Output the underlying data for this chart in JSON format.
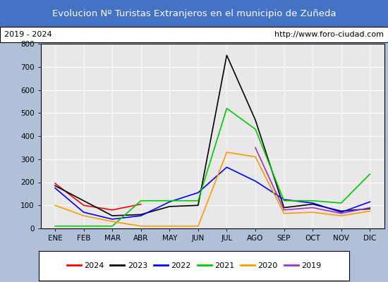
{
  "title": "Evolucion Nº Turistas Extranjeros en el municipio de Zuñeda",
  "subtitle_left": "2019 - 2024",
  "subtitle_right": "http://www.foro-ciudad.com",
  "title_bg_color": "#4472c4",
  "title_text_color": "#ffffff",
  "subtitle_bg_color": "#ffffff",
  "subtitle_text_color": "#000000",
  "plot_bg_color": "#e8e8e8",
  "fig_bg_color": "#b0c0d8",
  "months": [
    "ENE",
    "FEB",
    "MAR",
    "ABR",
    "MAY",
    "JUN",
    "JUL",
    "AGO",
    "SEP",
    "OCT",
    "NOV",
    "DIC"
  ],
  "series": {
    "2024": {
      "color": "#ff0000",
      "linewidth": 1.2,
      "data": [
        195,
        100,
        80,
        105,
        null,
        null,
        null,
        null,
        null,
        null,
        null,
        null
      ]
    },
    "2023": {
      "color": "#000000",
      "linewidth": 1.2,
      "data": [
        185,
        120,
        55,
        60,
        95,
        100,
        750,
        470,
        90,
        105,
        75,
        85
      ]
    },
    "2022": {
      "color": "#0000ff",
      "linewidth": 1.2,
      "data": [
        175,
        70,
        40,
        55,
        115,
        155,
        265,
        205,
        125,
        110,
        70,
        115
      ]
    },
    "2021": {
      "color": "#00cc00",
      "linewidth": 1.2,
      "data": [
        10,
        10,
        10,
        120,
        120,
        120,
        520,
        430,
        120,
        120,
        110,
        235
      ]
    },
    "2020": {
      "color": "#ff9900",
      "linewidth": 1.2,
      "data": [
        100,
        55,
        30,
        10,
        10,
        10,
        330,
        310,
        65,
        70,
        55,
        75
      ]
    },
    "2019": {
      "color": "#9933cc",
      "linewidth": 1.2,
      "data": [
        null,
        null,
        null,
        null,
        null,
        null,
        null,
        350,
        80,
        90,
        65,
        90
      ]
    }
  },
  "ylim": [
    0,
    800
  ],
  "yticks": [
    0,
    100,
    200,
    300,
    400,
    500,
    600,
    700,
    800
  ],
  "legend_order": [
    "2024",
    "2023",
    "2022",
    "2021",
    "2020",
    "2019"
  ],
  "border_color": "#000000"
}
